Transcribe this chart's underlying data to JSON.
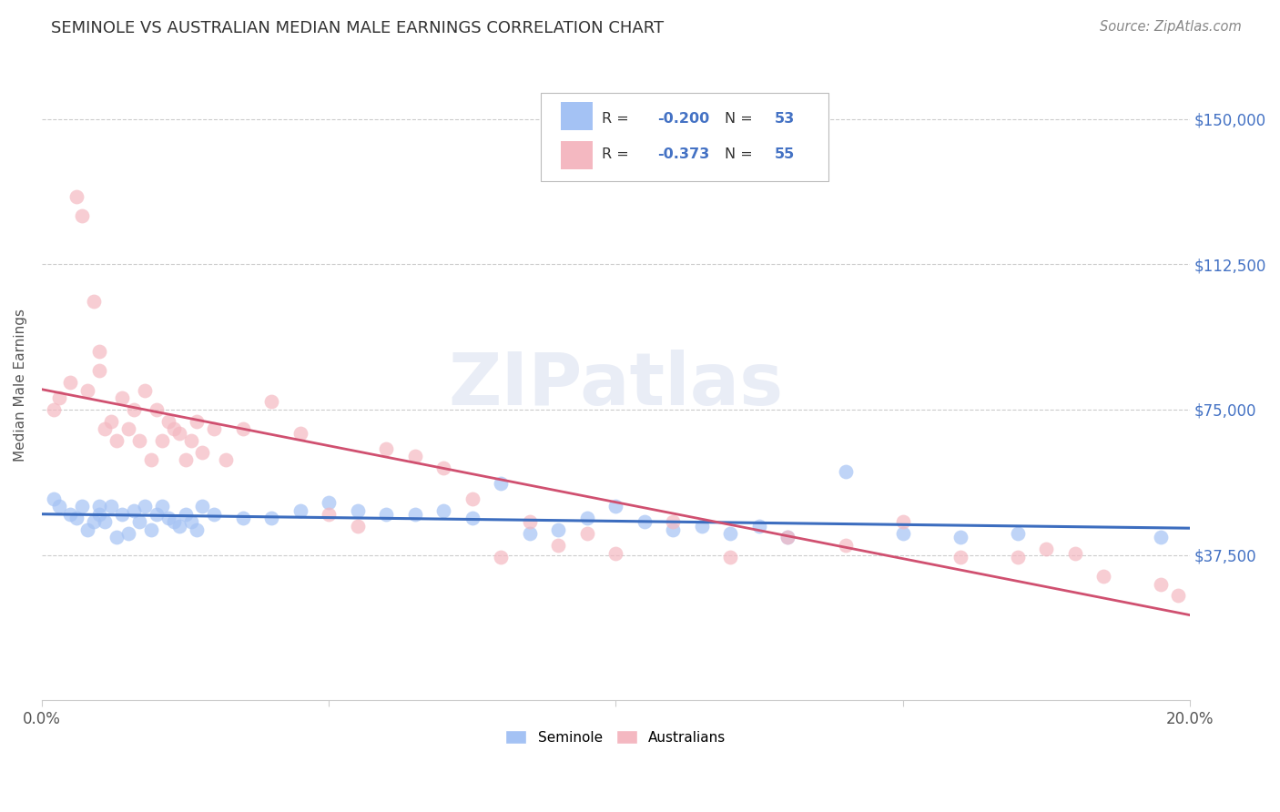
{
  "title": "SEMINOLE VS AUSTRALIAN MEDIAN MALE EARNINGS CORRELATION CHART",
  "source": "Source: ZipAtlas.com",
  "ylabel": "Median Male Earnings",
  "ytick_labels": [
    "$37,500",
    "$75,000",
    "$112,500",
    "$150,000"
  ],
  "ytick_values": [
    37500,
    75000,
    112500,
    150000
  ],
  "blue_color": "#a4c2f4",
  "pink_color": "#f4b8c1",
  "blue_line_color": "#3c6dbf",
  "pink_line_color": "#d05070",
  "axis_label_color": "#4472c4",
  "text_r_color": "#222222",
  "blue_scatter_x": [
    0.2,
    0.3,
    0.5,
    0.6,
    0.7,
    0.8,
    0.9,
    1.0,
    1.0,
    1.1,
    1.2,
    1.3,
    1.4,
    1.5,
    1.6,
    1.7,
    1.8,
    1.9,
    2.0,
    2.1,
    2.2,
    2.3,
    2.4,
    2.5,
    2.6,
    2.7,
    2.8,
    3.0,
    3.5,
    4.0,
    4.5,
    5.0,
    5.5,
    6.0,
    6.5,
    7.0,
    7.5,
    8.0,
    8.5,
    9.0,
    9.5,
    10.0,
    10.5,
    11.0,
    11.5,
    12.0,
    12.5,
    13.0,
    14.0,
    15.0,
    16.0,
    17.0,
    19.5
  ],
  "blue_scatter_y": [
    52000,
    50000,
    48000,
    47000,
    50000,
    44000,
    46000,
    50000,
    48000,
    46000,
    50000,
    42000,
    48000,
    43000,
    49000,
    46000,
    50000,
    44000,
    48000,
    50000,
    47000,
    46000,
    45000,
    48000,
    46000,
    44000,
    50000,
    48000,
    47000,
    47000,
    49000,
    51000,
    49000,
    48000,
    48000,
    49000,
    47000,
    56000,
    43000,
    44000,
    47000,
    50000,
    46000,
    44000,
    45000,
    43000,
    45000,
    42000,
    59000,
    43000,
    42000,
    43000,
    42000
  ],
  "pink_scatter_x": [
    0.2,
    0.3,
    0.5,
    0.6,
    0.7,
    0.8,
    0.9,
    1.0,
    1.0,
    1.1,
    1.2,
    1.3,
    1.4,
    1.5,
    1.6,
    1.7,
    1.8,
    1.9,
    2.0,
    2.1,
    2.2,
    2.3,
    2.4,
    2.5,
    2.6,
    2.7,
    2.8,
    3.0,
    3.2,
    3.5,
    4.0,
    4.5,
    5.0,
    5.5,
    6.0,
    6.5,
    7.0,
    7.5,
    8.0,
    8.5,
    9.0,
    9.5,
    10.0,
    11.0,
    12.0,
    13.0,
    14.0,
    15.0,
    16.0,
    17.0,
    17.5,
    18.0,
    18.5,
    19.5,
    19.8
  ],
  "pink_scatter_y": [
    75000,
    78000,
    82000,
    130000,
    125000,
    80000,
    103000,
    90000,
    85000,
    70000,
    72000,
    67000,
    78000,
    70000,
    75000,
    67000,
    80000,
    62000,
    75000,
    67000,
    72000,
    70000,
    69000,
    62000,
    67000,
    72000,
    64000,
    70000,
    62000,
    70000,
    77000,
    69000,
    48000,
    45000,
    65000,
    63000,
    60000,
    52000,
    37000,
    46000,
    40000,
    43000,
    38000,
    46000,
    37000,
    42000,
    40000,
    46000,
    37000,
    37000,
    39000,
    38000,
    32000,
    30000,
    27000
  ]
}
